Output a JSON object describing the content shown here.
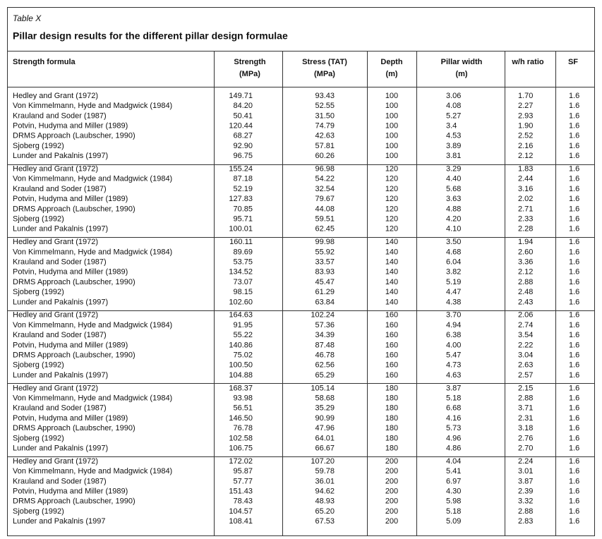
{
  "caption": "Table X",
  "title": "Pillar design results for the different pillar design formulae",
  "table": {
    "header": [
      [
        "Strength formula"
      ],
      [
        "Strength",
        "(MPa)"
      ],
      [
        "Stress (TAT)",
        "(MPa)"
      ],
      [
        "Depth",
        "(m)"
      ],
      [
        "Pillar width",
        "(m)"
      ],
      [
        "w/h ratio"
      ],
      [
        "SF"
      ]
    ],
    "groups": [
      [
        [
          "Hedley and Grant (1972)",
          "149.71",
          "93.43",
          "100",
          "3.06",
          "1.70",
          "1.6"
        ],
        [
          "Von Kimmelmann, Hyde and Madgwick (1984)",
          "84.20",
          "52.55",
          "100",
          "4.08",
          "2.27",
          "1.6"
        ],
        [
          "Krauland and Soder (1987)",
          "50.41",
          "31.50",
          "100",
          "5.27",
          "2.93",
          "1.6"
        ],
        [
          "Potvin, Hudyma and Miller (1989)",
          "120.44",
          "74.79",
          "100",
          "3.4",
          "1.90",
          "1.6"
        ],
        [
          "DRMS Approach (Laubscher, 1990)",
          "68.27",
          "42.63",
          "100",
          "4.53",
          "2.52",
          "1.6"
        ],
        [
          "Sjoberg (1992)",
          "92.90",
          "57.81",
          "100",
          "3.89",
          "2.16",
          "1.6"
        ],
        [
          "Lunder and Pakalnis (1997)",
          "96.75",
          "60.26",
          "100",
          "3.81",
          "2.12",
          "1.6"
        ]
      ],
      [
        [
          "Hedley and Grant (1972)",
          "155.24",
          "96.98",
          "120",
          "3.29",
          "1.83",
          "1.6"
        ],
        [
          "Von Kimmelmann, Hyde and Madgwick (1984)",
          "87.18",
          "54.22",
          "120",
          "4.40",
          "2.44",
          "1.6"
        ],
        [
          "Krauland and Soder (1987)",
          "52.19",
          "32.54",
          "120",
          "5.68",
          "3.16",
          "1.6"
        ],
        [
          "Potvin, Hudyma and Miller (1989)",
          "127.83",
          "79.67",
          "120",
          "3.63",
          "2.02",
          "1.6"
        ],
        [
          "DRMS Approach (Laubscher, 1990)",
          "70.85",
          "44.08",
          "120",
          "4.88",
          "2.71",
          "1.6"
        ],
        [
          "Sjoberg (1992)",
          "95.71",
          "59.51",
          "120",
          "4.20",
          "2.33",
          "1.6"
        ],
        [
          "Lunder and Pakalnis (1997)",
          "100.01",
          "62.45",
          "120",
          "4.10",
          "2.28",
          "1.6"
        ]
      ],
      [
        [
          "Hedley and Grant (1972)",
          "160.11",
          "99.98",
          "140",
          "3.50",
          "1.94",
          "1.6"
        ],
        [
          "Von Kimmelmann, Hyde and Madgwick (1984)",
          "89.69",
          "55.92",
          "140",
          "4.68",
          "2.60",
          "1.6"
        ],
        [
          "Krauland and Soder (1987)",
          "53.75",
          "33.57",
          "140",
          "6.04",
          "3.36",
          "1.6"
        ],
        [
          "Potvin, Hudyma and Miller (1989)",
          "134.52",
          "83.93",
          "140",
          "3.82",
          "2.12",
          "1.6"
        ],
        [
          "DRMS Approach (Laubscher, 1990)",
          "73.07",
          "45.47",
          "140",
          "5.19",
          "2.88",
          "1.6"
        ],
        [
          "Sjoberg (1992)",
          "98.15",
          "61.29",
          "140",
          "4.47",
          "2.48",
          "1.6"
        ],
        [
          "Lunder and Pakalnis (1997)",
          "102.60",
          "63.84",
          "140",
          "4.38",
          "2.43",
          "1.6"
        ]
      ],
      [
        [
          "Hedley and Grant (1972)",
          "164.63",
          "102.24",
          "160",
          "3.70",
          "2.06",
          "1.6"
        ],
        [
          "Von Kimmelmann, Hyde and Madgwick (1984)",
          "91.95",
          "57.36",
          "160",
          "4.94",
          "2.74",
          "1.6"
        ],
        [
          "Krauland and Soder (1987)",
          "55.22",
          "34.39",
          "160",
          "6.38",
          "3.54",
          "1.6"
        ],
        [
          "Potvin, Hudyma and Miller (1989)",
          "140.86",
          "87.48",
          "160",
          "4.00",
          "2.22",
          "1.6"
        ],
        [
          "DRMS Approach (Laubscher, 1990)",
          "75.02",
          "46.78",
          "160",
          "5.47",
          "3.04",
          "1.6"
        ],
        [
          "Sjoberg (1992)",
          "100.50",
          "62.56",
          "160",
          "4.73",
          "2.63",
          "1.6"
        ],
        [
          "Lunder and Pakalnis (1997)",
          "104.88",
          "65.29",
          "160",
          "4.63",
          "2.57",
          "1.6"
        ]
      ],
      [
        [
          "Hedley and Grant (1972)",
          "168.37",
          "105.14",
          "180",
          "3.87",
          "2.15",
          "1.6"
        ],
        [
          "Von Kimmelmann, Hyde and Madgwick (1984)",
          "93.98",
          "58.68",
          "180",
          "5.18",
          "2.88",
          "1.6"
        ],
        [
          "Krauland and Soder (1987)",
          "56.51",
          "35.29",
          "180",
          "6.68",
          "3.71",
          "1.6"
        ],
        [
          "Potvin, Hudyma and Miller (1989)",
          "146.50",
          "90.99",
          "180",
          "4.16",
          "2.31",
          "1.6"
        ],
        [
          "DRMS Approach (Laubscher, 1990)",
          "76.78",
          "47.96",
          "180",
          "5.73",
          "3.18",
          "1.6"
        ],
        [
          "Sjoberg (1992)",
          "102.58",
          "64.01",
          "180",
          "4.96",
          "2.76",
          "1.6"
        ],
        [
          "Lunder and Pakalnis (1997)",
          "106.75",
          "66.67",
          "180",
          "4.86",
          "2.70",
          "1.6"
        ]
      ],
      [
        [
          "Hedley and Grant (1972)",
          "172.02",
          "107.20",
          "200",
          "4.04",
          "2.24",
          "1.6"
        ],
        [
          "Von Kimmelmann, Hyde and Madgwick (1984)",
          "95.87",
          "59.78",
          "200",
          "5.41",
          "3.01",
          "1.6"
        ],
        [
          "Krauland and Soder (1987)",
          "57.77",
          "36.01",
          "200",
          "6.97",
          "3.87",
          "1.6"
        ],
        [
          "Potvin, Hudyma and Miller (1989)",
          "151.43",
          "94.62",
          "200",
          "4.30",
          "2.39",
          "1.6"
        ],
        [
          "DRMS Approach (Laubscher, 1990)",
          "78.43",
          "48.93",
          "200",
          "5.98",
          "3.32",
          "1.6"
        ],
        [
          "Sjoberg (1992)",
          "104.57",
          "65.20",
          "200",
          "5.18",
          "2.88",
          "1.6"
        ],
        [
          "Lunder and Pakalnis (1997",
          "108.41",
          "67.53",
          "200",
          "5.09",
          "2.83",
          "1.6"
        ]
      ]
    ]
  }
}
